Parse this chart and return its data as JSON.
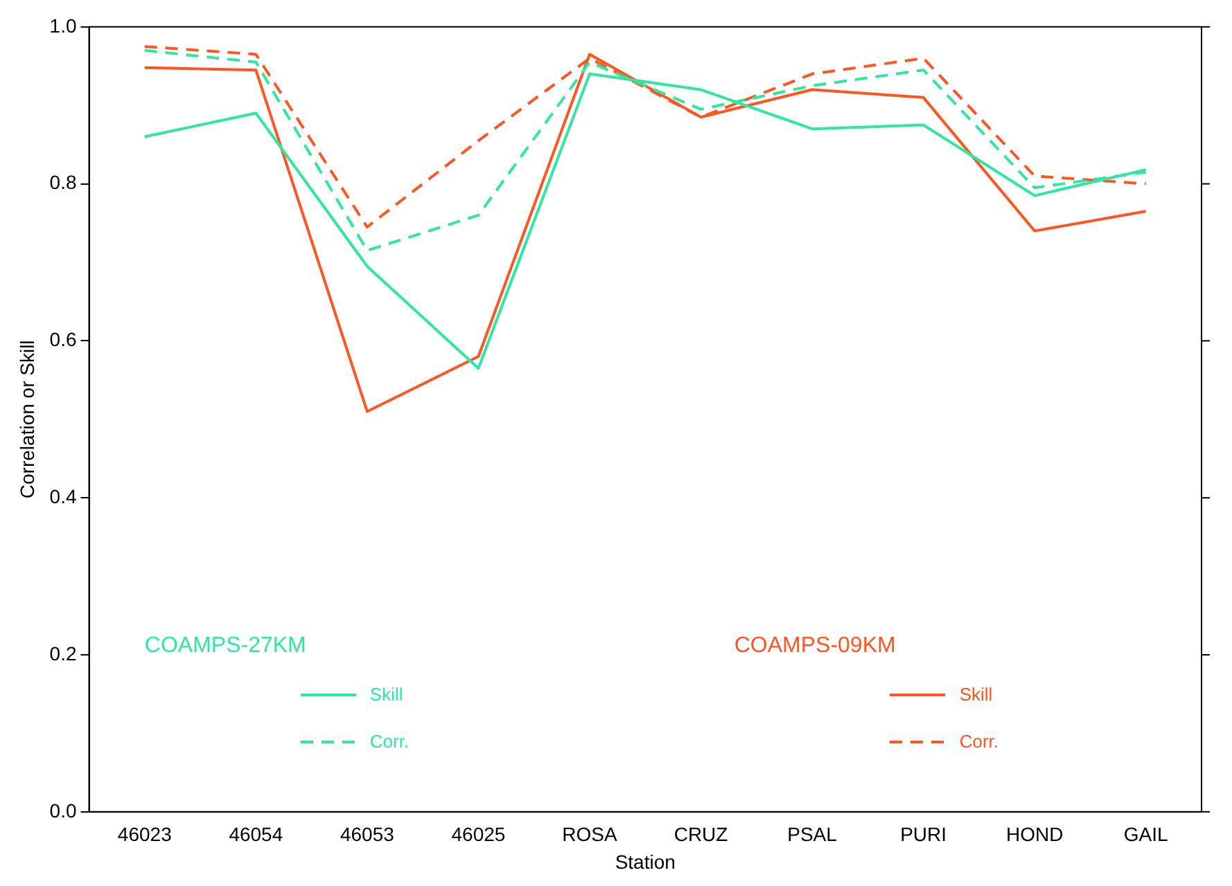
{
  "chart_data": {
    "type": "line",
    "xlabel": "Station",
    "ylabel": "Correlation or Skill",
    "categories": [
      "46023",
      "46054",
      "46053",
      "46025",
      "ROSA",
      "CRUZ",
      "PSAL",
      "PURI",
      "HOND",
      "GAIL"
    ],
    "series": [
      {
        "name": "Skill",
        "color": "#2ee8a0",
        "line_style": "solid",
        "values": [
          0.86,
          0.89,
          0.695,
          0.565,
          0.94,
          0.92,
          0.87,
          0.875,
          0.785,
          0.818
        ]
      },
      {
        "name": "Corr.",
        "color": "#2ee8a0",
        "line_style": "dashed",
        "values": [
          0.97,
          0.955,
          0.715,
          0.76,
          0.955,
          0.895,
          0.925,
          0.945,
          0.795,
          0.815
        ]
      },
      {
        "name": "Skill",
        "color": "#ff5520",
        "line_style": "solid",
        "values": [
          0.948,
          0.945,
          0.51,
          0.58,
          0.965,
          0.885,
          0.92,
          0.91,
          0.74,
          0.765
        ]
      },
      {
        "name": "Corr.",
        "color": "#ff5520",
        "line_style": "dashed",
        "values": [
          0.975,
          0.965,
          0.745,
          0.855,
          0.96,
          0.885,
          0.94,
          0.96,
          0.81,
          0.8
        ]
      }
    ],
    "annotations": [
      "COAMPS-27KM",
      "COAMPS-09KM"
    ],
    "ylim": [
      0,
      1
    ],
    "yticks": [
      {
        "value": 0,
        "label": "0.0"
      },
      0.2,
      0.4,
      0.6,
      0.8,
      {
        "value": 1,
        "label": "1.0"
      }
    ],
    "grid": false,
    "legend": "bottom",
    "marker": "none"
  }
}
